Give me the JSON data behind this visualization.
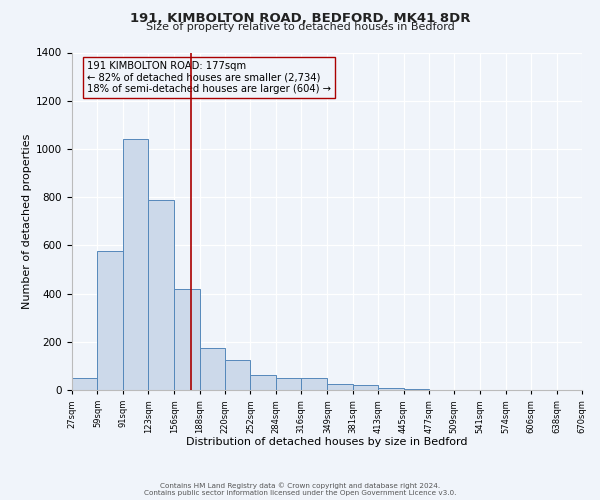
{
  "title_line1": "191, KIMBOLTON ROAD, BEDFORD, MK41 8DR",
  "title_line2": "Size of property relative to detached houses in Bedford",
  "xlabel": "Distribution of detached houses by size in Bedford",
  "ylabel": "Number of detached properties",
  "bar_color_face": "#ccd9ea",
  "bar_color_edge": "#5588bb",
  "background_color": "#f0f4fa",
  "plot_bg_color": "#f0f4fa",
  "grid_color": "#ffffff",
  "bin_edges": [
    27,
    59,
    91,
    123,
    156,
    188,
    220,
    252,
    284,
    316,
    349,
    381,
    413,
    445,
    477,
    509,
    541,
    574,
    606,
    638,
    670
  ],
  "bin_labels": [
    "27sqm",
    "59sqm",
    "91sqm",
    "123sqm",
    "156sqm",
    "188sqm",
    "220sqm",
    "252sqm",
    "284sqm",
    "316sqm",
    "349sqm",
    "381sqm",
    "413sqm",
    "445sqm",
    "477sqm",
    "509sqm",
    "541sqm",
    "574sqm",
    "606sqm",
    "638sqm",
    "670sqm"
  ],
  "counts": [
    50,
    575,
    1040,
    790,
    420,
    175,
    125,
    62,
    50,
    50,
    25,
    22,
    10,
    5,
    2,
    1,
    0,
    0,
    0,
    0
  ],
  "property_size": 177,
  "vline_color": "#aa0000",
  "annotation_box_edge": "#aa0000",
  "annotation_text_line1": "191 KIMBOLTON ROAD: 177sqm",
  "annotation_text_line2": "← 82% of detached houses are smaller (2,734)",
  "annotation_text_line3": "18% of semi-detached houses are larger (604) →",
  "ylim": [
    0,
    1400
  ],
  "yticks": [
    0,
    200,
    400,
    600,
    800,
    1000,
    1200,
    1400
  ],
  "footer_line1": "Contains HM Land Registry data © Crown copyright and database right 2024.",
  "footer_line2": "Contains public sector information licensed under the Open Government Licence v3.0."
}
